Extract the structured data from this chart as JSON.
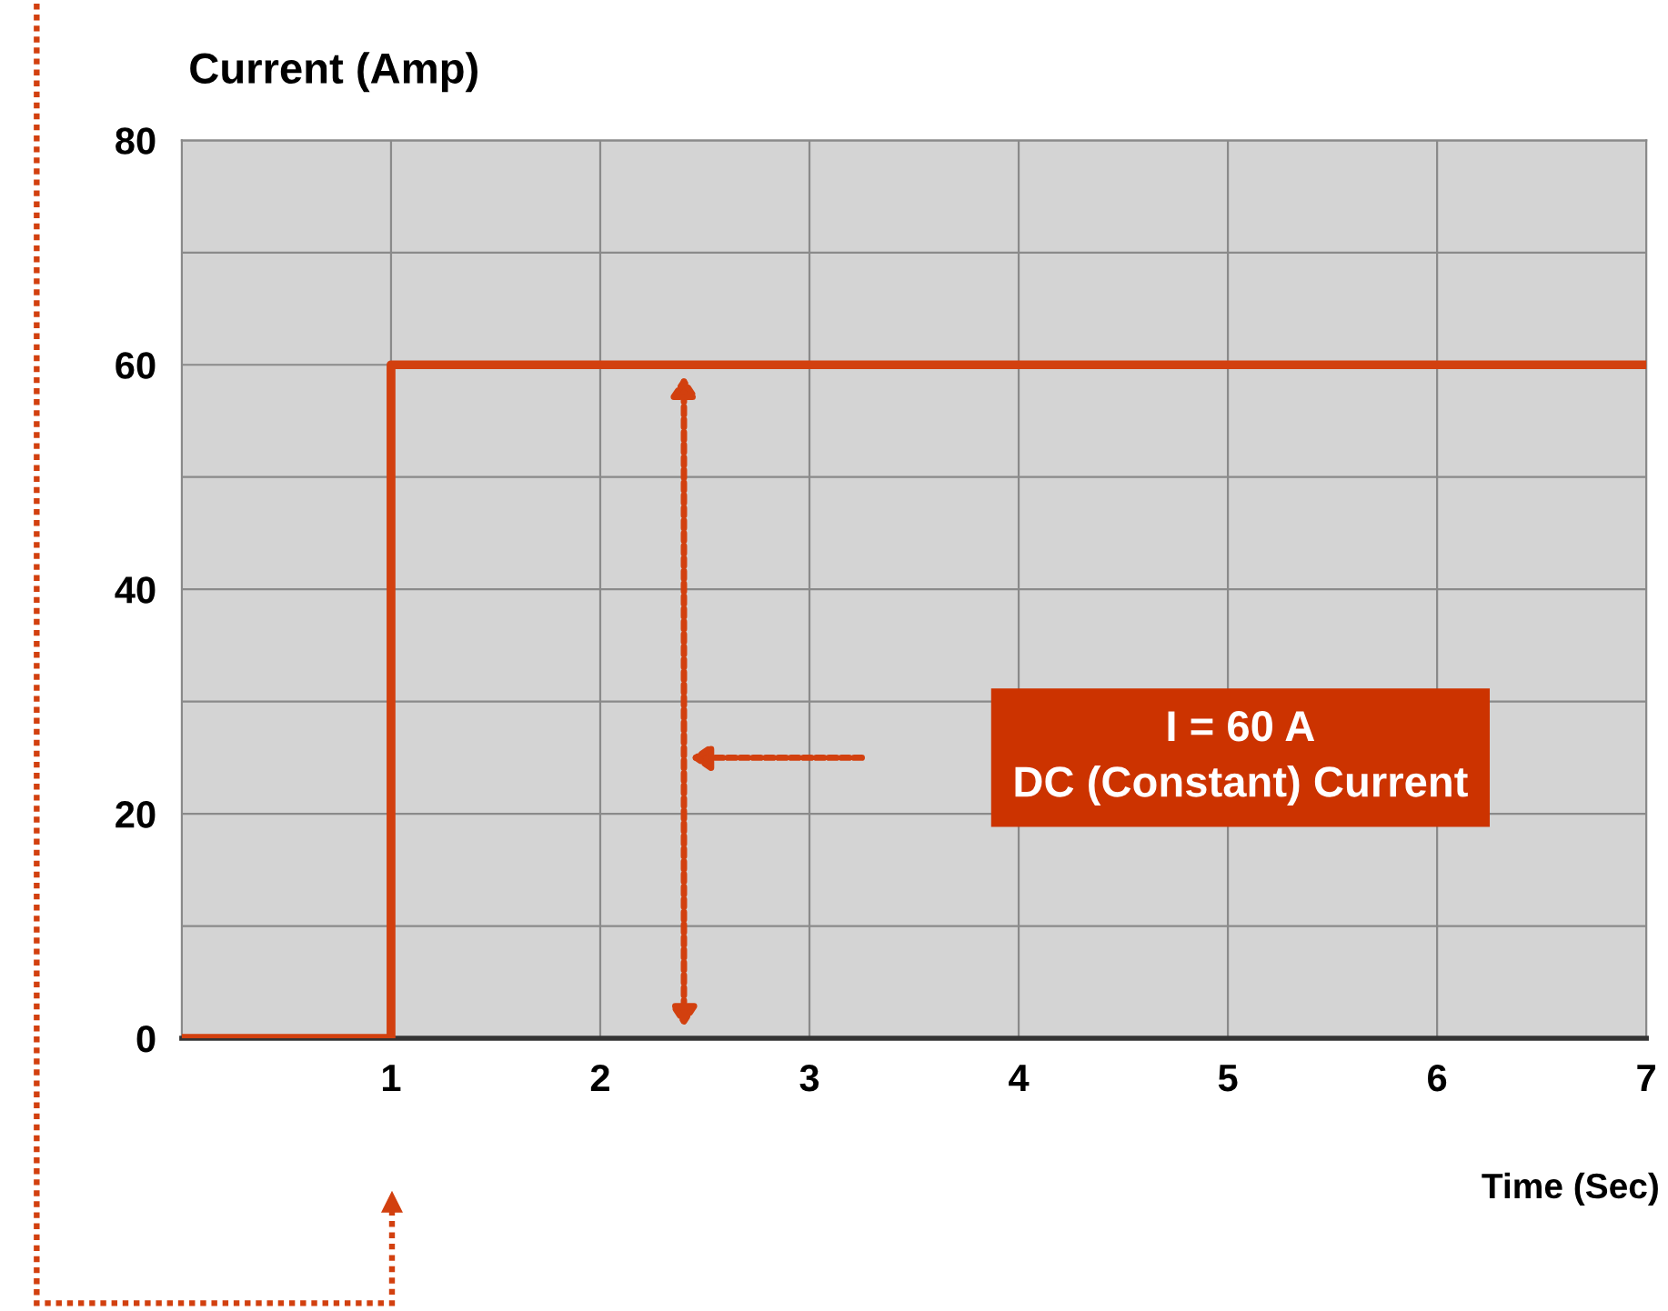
{
  "chart_data": {
    "type": "step",
    "ylabel": "Current (Amp)",
    "xlabel": "Time (Sec)",
    "x": [
      0,
      1,
      7
    ],
    "series": [
      {
        "color": "#d2400f",
        "values": [
          0,
          60,
          60
        ]
      }
    ],
    "xlim": [
      0,
      7
    ],
    "ylim": [
      0,
      80
    ],
    "xticks": [
      1,
      2,
      3,
      4,
      5,
      6,
      7
    ],
    "yticks": [
      0,
      {
        "value": 10,
        "label": null
      },
      20,
      {
        "value": 30,
        "label": null
      },
      40,
      {
        "value": 50,
        "label": null
      },
      60,
      {
        "value": 70,
        "label": null
      },
      80
    ],
    "grid": true,
    "legend": false,
    "marker": "none",
    "line_style": "solid",
    "annotations": [
      "I = 60 A\nDC (Constant) Current"
    ]
  }
}
